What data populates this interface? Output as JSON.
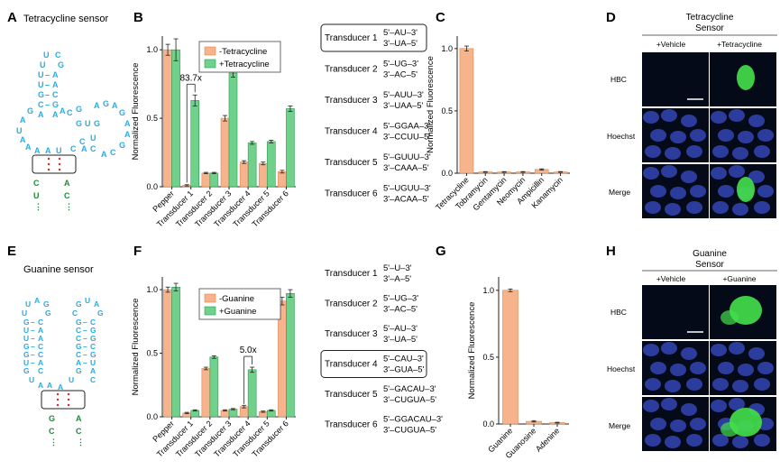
{
  "colors": {
    "orange": "#f6b38c",
    "orange_stroke": "#d98853",
    "green": "#6fd18c",
    "green_stroke": "#2f9a52",
    "cyan": "#29abe2",
    "dark_green": "#1e8a36",
    "red_dot": "#e0262a",
    "micro_bg": "#050a18",
    "micro_green": "#45e04b",
    "micro_blue": "#3245b5"
  },
  "panels": {
    "A": {
      "letter": "A",
      "title": "Tetracycline sensor"
    },
    "B": {
      "letter": "B"
    },
    "C": {
      "letter": "C"
    },
    "D": {
      "letter": "D",
      "title_line1": "Tetracycline",
      "title_line2": "Sensor",
      "col1": "+Vehicle",
      "col2": "+Tetracycline",
      "rows": [
        "HBC",
        "Hoechst",
        "Merge"
      ]
    },
    "E": {
      "letter": "E",
      "title": "Guanine sensor"
    },
    "F": {
      "letter": "F"
    },
    "G": {
      "letter": "G"
    },
    "H": {
      "letter": "H",
      "title_line1": "Guanine",
      "title_line2": "Sensor",
      "col1": "+Vehicle",
      "col2": "+Guanine",
      "rows": [
        "HBC",
        "Hoechst",
        "Merge"
      ]
    }
  },
  "transducers_top": [
    {
      "name": "Transducer 1",
      "top": "5'–AU–3'",
      "bottom": "3'–UA–5'",
      "boxed": true
    },
    {
      "name": "Transducer 2",
      "top": "5'–UG–3'",
      "bottom": "3'–AC–5'",
      "boxed": false
    },
    {
      "name": "Transducer 3",
      "top": "5'–AUU–3'",
      "bottom": "3'–UAA–5'",
      "boxed": false
    },
    {
      "name": "Transducer 4",
      "top": "5'–GGAA–3'",
      "bottom": "3'–CCUU–5'",
      "boxed": false
    },
    {
      "name": "Transducer 5",
      "top": "5'–GUUU–3'",
      "bottom": "3'–CAAA–5'",
      "boxed": false
    },
    {
      "name": "Transducer 6",
      "top": "5'–UGUU–3'",
      "bottom": "3'–ACAA–5'",
      "boxed": false
    }
  ],
  "transducers_bottom": [
    {
      "name": "Transducer 1",
      "top": "5'–U–3'",
      "bottom": "3'–A–5'",
      "boxed": false
    },
    {
      "name": "Transducer 2",
      "top": "5'–UG–3'",
      "bottom": "3'–AC–5'",
      "boxed": false
    },
    {
      "name": "Transducer 3",
      "top": "5'–AU–3'",
      "bottom": "3'–UA–5'",
      "boxed": false
    },
    {
      "name": "Transducer 4",
      "top": "5'–CAU–3'",
      "bottom": "3'–GUA–5'",
      "boxed": true
    },
    {
      "name": "Transducer 5",
      "top": "5'–GACAU–3'",
      "bottom": "3'–CUGUA–5'",
      "boxed": false
    },
    {
      "name": "Transducer 6",
      "top": "5'–GGACAU–3'",
      "bottom": "3'–CUGUA–5'",
      "boxed": false
    }
  ],
  "chart_data": [
    {
      "panel": "B",
      "type": "bar",
      "ylabel": "Normalized Fluorescence",
      "ylim": [
        0,
        1.1
      ],
      "yticks": [
        "0.0",
        "0.5",
        "1.0"
      ],
      "categories": [
        "Pepper",
        "Transducer 1",
        "Transducer 2",
        "Transducer 3",
        "Transducer 4",
        "Transducer 5",
        "Transducer 6"
      ],
      "series": [
        {
          "name": "-Tetracycline",
          "color": "#f6b38c",
          "values": [
            1.0,
            0.01,
            0.1,
            0.5,
            0.18,
            0.17,
            0.11
          ],
          "errors": [
            0.04,
            0.005,
            0.005,
            0.02,
            0.01,
            0.01,
            0.01
          ]
        },
        {
          "name": "+Tetracycline",
          "color": "#6fd18c",
          "values": [
            1.0,
            0.63,
            0.1,
            0.83,
            0.32,
            0.33,
            0.57
          ],
          "errors": [
            0.08,
            0.04,
            0.005,
            0.03,
            0.01,
            0.01,
            0.02
          ]
        }
      ],
      "annotation": {
        "text": "83.7x",
        "category_index": 1
      },
      "legend": "top-right"
    },
    {
      "panel": "C",
      "type": "bar",
      "ylabel": "Normalized Fluorescence",
      "ylim": [
        0,
        1.1
      ],
      "yticks": [
        "0.0",
        "0.5",
        "1.0"
      ],
      "categories": [
        "Tetracycline",
        "Tobramycin",
        "Gentamycin",
        "Neomycin",
        "Ampicillin",
        "Kanamycin"
      ],
      "values": [
        1.0,
        0.01,
        0.01,
        0.01,
        0.03,
        0.01
      ],
      "errors": [
        0.02,
        0.003,
        0.003,
        0.003,
        0.005,
        0.003
      ]
    },
    {
      "panel": "F",
      "type": "bar",
      "ylabel": "Normalized Fluorescence",
      "ylim": [
        0,
        1.1
      ],
      "yticks": [
        "0.0",
        "0.5",
        "1.0"
      ],
      "categories": [
        "Pepper",
        "Transducer 1",
        "Transducer 2",
        "Transducer 3",
        "Transducer 4",
        "Transducer 5",
        "Transducer 6"
      ],
      "series": [
        {
          "name": "-Guanine",
          "color": "#f6b38c",
          "values": [
            1.0,
            0.03,
            0.38,
            0.05,
            0.08,
            0.04,
            0.91
          ],
          "errors": [
            0.02,
            0.005,
            0.01,
            0.005,
            0.01,
            0.005,
            0.03
          ]
        },
        {
          "name": "+Guanine",
          "color": "#6fd18c",
          "values": [
            1.02,
            0.05,
            0.47,
            0.06,
            0.37,
            0.05,
            0.97
          ],
          "errors": [
            0.03,
            0.005,
            0.01,
            0.005,
            0.02,
            0.005,
            0.03
          ]
        }
      ],
      "annotation": {
        "text": "5.0x",
        "category_index": 4
      },
      "legend": "top-right"
    },
    {
      "panel": "G",
      "type": "bar",
      "ylabel": "Normalized Fluorescence",
      "ylim": [
        0,
        1.1
      ],
      "yticks": [
        "0.0",
        "0.5",
        "1.0"
      ],
      "categories": [
        "Guanine",
        "Guanosine",
        "Adenine"
      ],
      "values": [
        1.0,
        0.02,
        0.01
      ],
      "errors": [
        0.01,
        0.005,
        0.003
      ]
    }
  ]
}
